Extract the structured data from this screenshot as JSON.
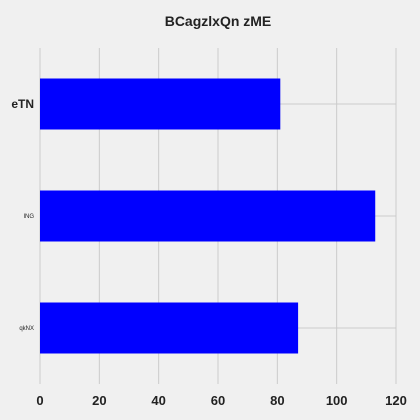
{
  "chart_data": {
    "type": "bar",
    "orientation": "horizontal",
    "title": "BCagzlxQn zME",
    "xlabel": "",
    "ylabel": "",
    "categories": [
      "eTN",
      "lNG",
      "qkNX"
    ],
    "values": [
      81,
      113,
      87
    ],
    "xlim": [
      0,
      120
    ],
    "xticks": [
      0,
      20,
      40,
      60,
      80,
      100,
      120
    ],
    "grid": true,
    "legend": "none",
    "colors": {
      "bar": "#0000ff",
      "background": "#f0f0f0",
      "grid": "#cbcbcb",
      "text": "#222222"
    }
  }
}
